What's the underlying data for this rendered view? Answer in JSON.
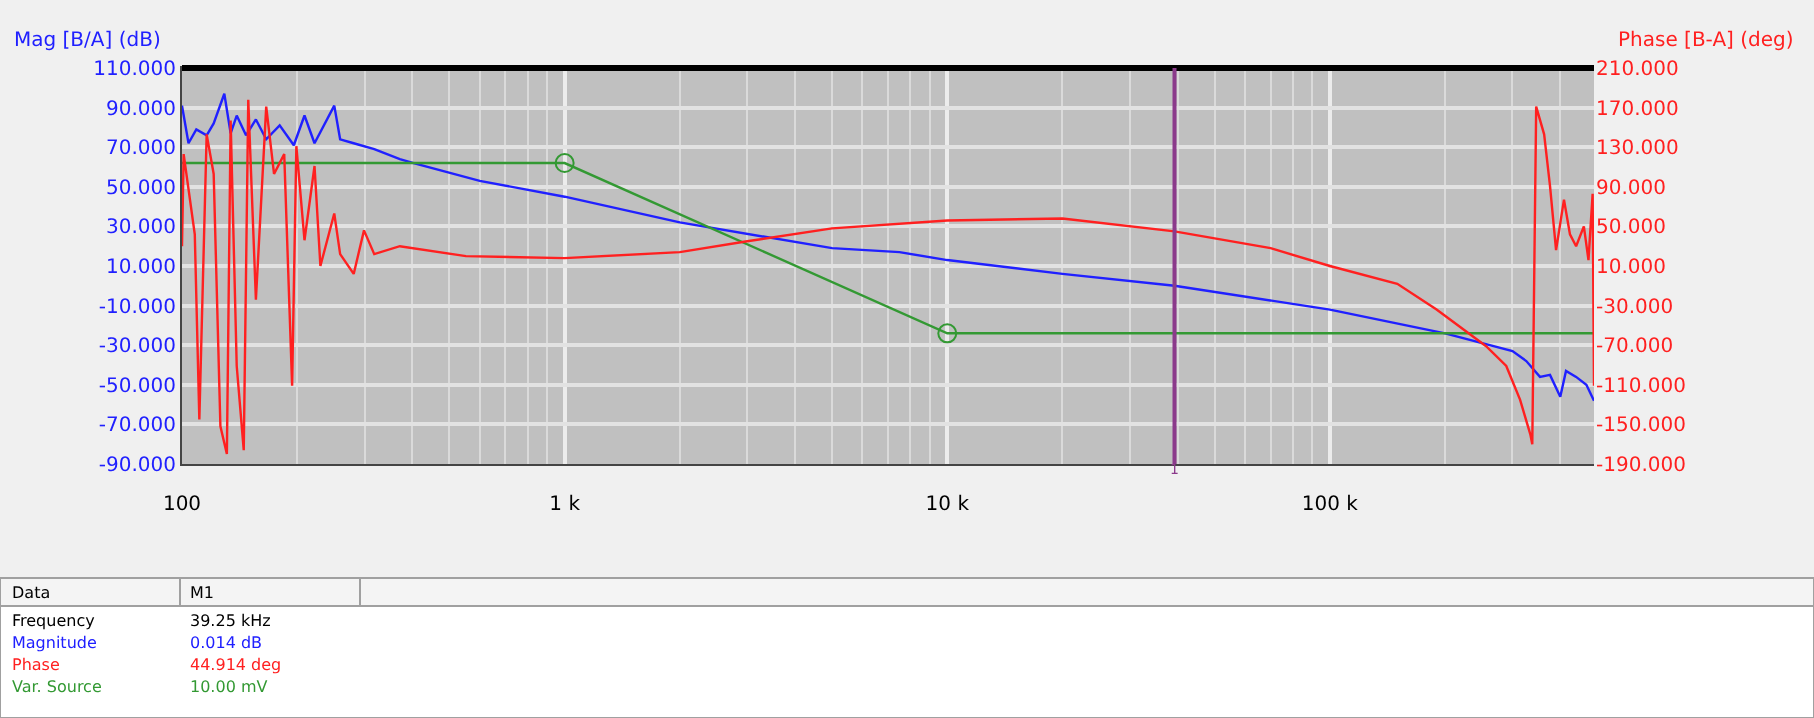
{
  "chart_data": {
    "type": "line",
    "ylabel": "Mag [B/A] (dB)",
    "y2label": "Phase [B-A] (deg)",
    "log": "x",
    "grid": true,
    "legend": false,
    "marker": "none",
    "line_style": "solid",
    "xlim": [
      100,
      490000
    ],
    "xticks": [
      {
        "value": 100,
        "label": "100"
      },
      {
        "value": 1000,
        "label": "1 k"
      },
      {
        "value": 10000,
        "label": "10 k"
      },
      {
        "value": 100000,
        "label": "100 k"
      }
    ],
    "ylim": [
      -90,
      110
    ],
    "yticks": [
      {
        "value": -90,
        "label": "-90.000"
      },
      {
        "value": -70,
        "label": "-70.000"
      },
      {
        "value": -50,
        "label": "-50.000"
      },
      {
        "value": -30,
        "label": "-30.000"
      },
      {
        "value": -10,
        "label": "-10.000"
      },
      {
        "value": 10,
        "label": "10.000"
      },
      {
        "value": 30,
        "label": "30.000"
      },
      {
        "value": 50,
        "label": "50.000"
      },
      {
        "value": 70,
        "label": "70.000"
      },
      {
        "value": 90,
        "label": "90.000"
      },
      {
        "value": 110,
        "label": "110.000"
      }
    ],
    "y2lim": [
      -190,
      210
    ],
    "y2ticks": [
      {
        "value": -190,
        "label": "-190.000"
      },
      {
        "value": -150,
        "label": "-150.000"
      },
      {
        "value": -110,
        "label": "-110.000"
      },
      {
        "value": -70,
        "label": "-70.000"
      },
      {
        "value": -30,
        "label": "-30.000"
      },
      {
        "value": 10,
        "label": "10.000"
      },
      {
        "value": 50,
        "label": "50.000"
      },
      {
        "value": 90,
        "label": "90.000"
      },
      {
        "value": 130,
        "label": "130.000"
      },
      {
        "value": 170,
        "label": "170.000"
      },
      {
        "value": 210,
        "label": "210.000"
      }
    ],
    "series": [
      {
        "name": "Magnitude",
        "color": "#2020ff",
        "x": [
          100,
          104,
          109,
          116,
          121,
          129,
          134,
          139,
          147,
          156,
          166,
          180,
          196,
          209,
          222,
          250,
          259,
          281,
          318,
          371,
          403,
          600,
          1000,
          2000,
          5000,
          7500,
          10000,
          20000,
          39250,
          100000,
          200000,
          300000,
          326000,
          354000,
          376000,
          400000,
          414000,
          440000,
          468000,
          490000
        ],
        "values": [
          91,
          72,
          79,
          76,
          82,
          97,
          77,
          86,
          76,
          84,
          74,
          81,
          71,
          86,
          72,
          91,
          74,
          72,
          69,
          64,
          62,
          53,
          45,
          32,
          19,
          17,
          13,
          6,
          0,
          -12,
          -24,
          -33,
          -38,
          -46,
          -45,
          -56,
          -43,
          -46,
          -50,
          -58
        ]
      },
      {
        "name": "Phase",
        "color": "#ff2020",
        "axis": "y2",
        "x": [
          100,
          101,
          108,
          111,
          116,
          121,
          126,
          131,
          134,
          139,
          145,
          149,
          156,
          166,
          174,
          185,
          194,
          199,
          209,
          222,
          230,
          250,
          259,
          281,
          299,
          318,
          371,
          552,
          1000,
          2000,
          3000,
          5000,
          10000,
          20000,
          39250,
          70000,
          100000,
          150000,
          190000,
          256000,
          289000,
          314000,
          334000,
          338000,
          346000,
          363000,
          376000,
          390000,
          409000,
          424000,
          440000,
          461000,
          474000,
          486000,
          490000
        ],
        "values": [
          30,
          123,
          42,
          -145,
          143,
          103,
          -152,
          -180,
          157,
          -91,
          -176,
          178,
          -24,
          171,
          103,
          123,
          -111,
          131,
          36,
          111,
          10,
          63,
          22,
          2,
          46,
          22,
          30,
          20,
          18,
          24,
          35,
          48,
          56,
          58,
          45,
          28,
          10,
          -8,
          -34,
          -71,
          -91,
          -125,
          -160,
          -170,
          171,
          143,
          91,
          26,
          77,
          42,
          30,
          50,
          16,
          83,
          -111
        ]
      },
      {
        "name": "Var. Source",
        "color": "#339933",
        "x": [
          100,
          1000,
          10000,
          490000
        ],
        "values": [
          62,
          62,
          -24,
          -24
        ]
      },
      {
        "type": "scatter",
        "color": "#339933",
        "marker": "circle",
        "x": [
          1000,
          10000
        ],
        "values": [
          62,
          -24
        ]
      }
    ],
    "ref_lines": [
      {
        "axis": "x",
        "value": 39250,
        "color": "#8b3a8b"
      }
    ],
    "annotations": [
      "1",
      "Data",
      "M1",
      "Frequency",
      "39.25 kHz",
      "0.014 dB",
      "44.914 deg",
      "10.00 mV"
    ]
  }
}
